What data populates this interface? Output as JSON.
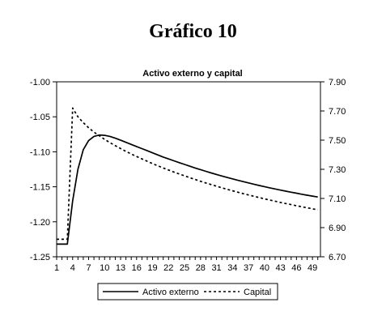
{
  "figure": {
    "title": "Gráfico 10"
  },
  "chart_data": {
    "type": "line",
    "title": "Activo externo y capital",
    "x": [
      1,
      2,
      3,
      4,
      5,
      6,
      7,
      8,
      9,
      10,
      11,
      12,
      13,
      14,
      15,
      16,
      17,
      18,
      19,
      20,
      21,
      22,
      23,
      24,
      25,
      26,
      27,
      28,
      29,
      30,
      31,
      32,
      33,
      34,
      35,
      36,
      37,
      38,
      39,
      40,
      41,
      42,
      43,
      44,
      45,
      46,
      47,
      48,
      49,
      50
    ],
    "x_ticks": [
      1,
      4,
      7,
      10,
      13,
      16,
      19,
      22,
      25,
      28,
      31,
      34,
      37,
      40,
      43,
      46,
      49
    ],
    "y_left": {
      "min": -1.25,
      "max": -1.0,
      "ticks": [
        "-1.00",
        "-1.05",
        "-1.10",
        "-1.15",
        "-1.20",
        "-1.25"
      ]
    },
    "y_right": {
      "min": 6.7,
      "max": 7.9,
      "ticks": [
        "7.90",
        "7.70",
        "7.50",
        "7.30",
        "7.10",
        "6.90",
        "6.70"
      ]
    },
    "series": [
      {
        "name": "Activo externo",
        "axis": "left",
        "style": "solid",
        "values": [
          -1.232,
          -1.232,
          -1.232,
          -1.17,
          -1.125,
          -1.097,
          -1.084,
          -1.078,
          -1.076,
          -1.0765,
          -1.078,
          -1.0805,
          -1.0835,
          -1.0865,
          -1.0895,
          -1.0925,
          -1.0955,
          -1.0985,
          -1.1015,
          -1.1045,
          -1.1075,
          -1.1102,
          -1.1129,
          -1.1155,
          -1.1181,
          -1.1206,
          -1.1231,
          -1.1255,
          -1.1279,
          -1.1302,
          -1.1324,
          -1.1346,
          -1.1367,
          -1.1387,
          -1.1407,
          -1.1426,
          -1.1445,
          -1.1463,
          -1.1481,
          -1.1498,
          -1.1515,
          -1.1531,
          -1.1547,
          -1.1562,
          -1.1577,
          -1.1592,
          -1.1606,
          -1.162,
          -1.1633,
          -1.1646
        ]
      },
      {
        "name": "Capital",
        "axis": "right",
        "style": "dashed",
        "values": [
          6.82,
          6.82,
          6.82,
          7.72,
          7.66,
          7.62,
          7.585,
          7.555,
          7.53,
          7.505,
          7.483,
          7.462,
          7.442,
          7.423,
          7.405,
          7.388,
          7.371,
          7.355,
          7.339,
          7.324,
          7.309,
          7.295,
          7.281,
          7.268,
          7.255,
          7.242,
          7.23,
          7.218,
          7.206,
          7.195,
          7.184,
          7.173,
          7.163,
          7.153,
          7.143,
          7.133,
          7.124,
          7.115,
          7.106,
          7.097,
          7.089,
          7.081,
          7.073,
          7.065,
          7.058,
          7.05,
          7.043,
          7.036,
          7.029,
          7.022
        ]
      }
    ],
    "legend": {
      "placement": "bottom",
      "entries": [
        "Activo externo",
        "Capital"
      ]
    },
    "grid": false
  }
}
